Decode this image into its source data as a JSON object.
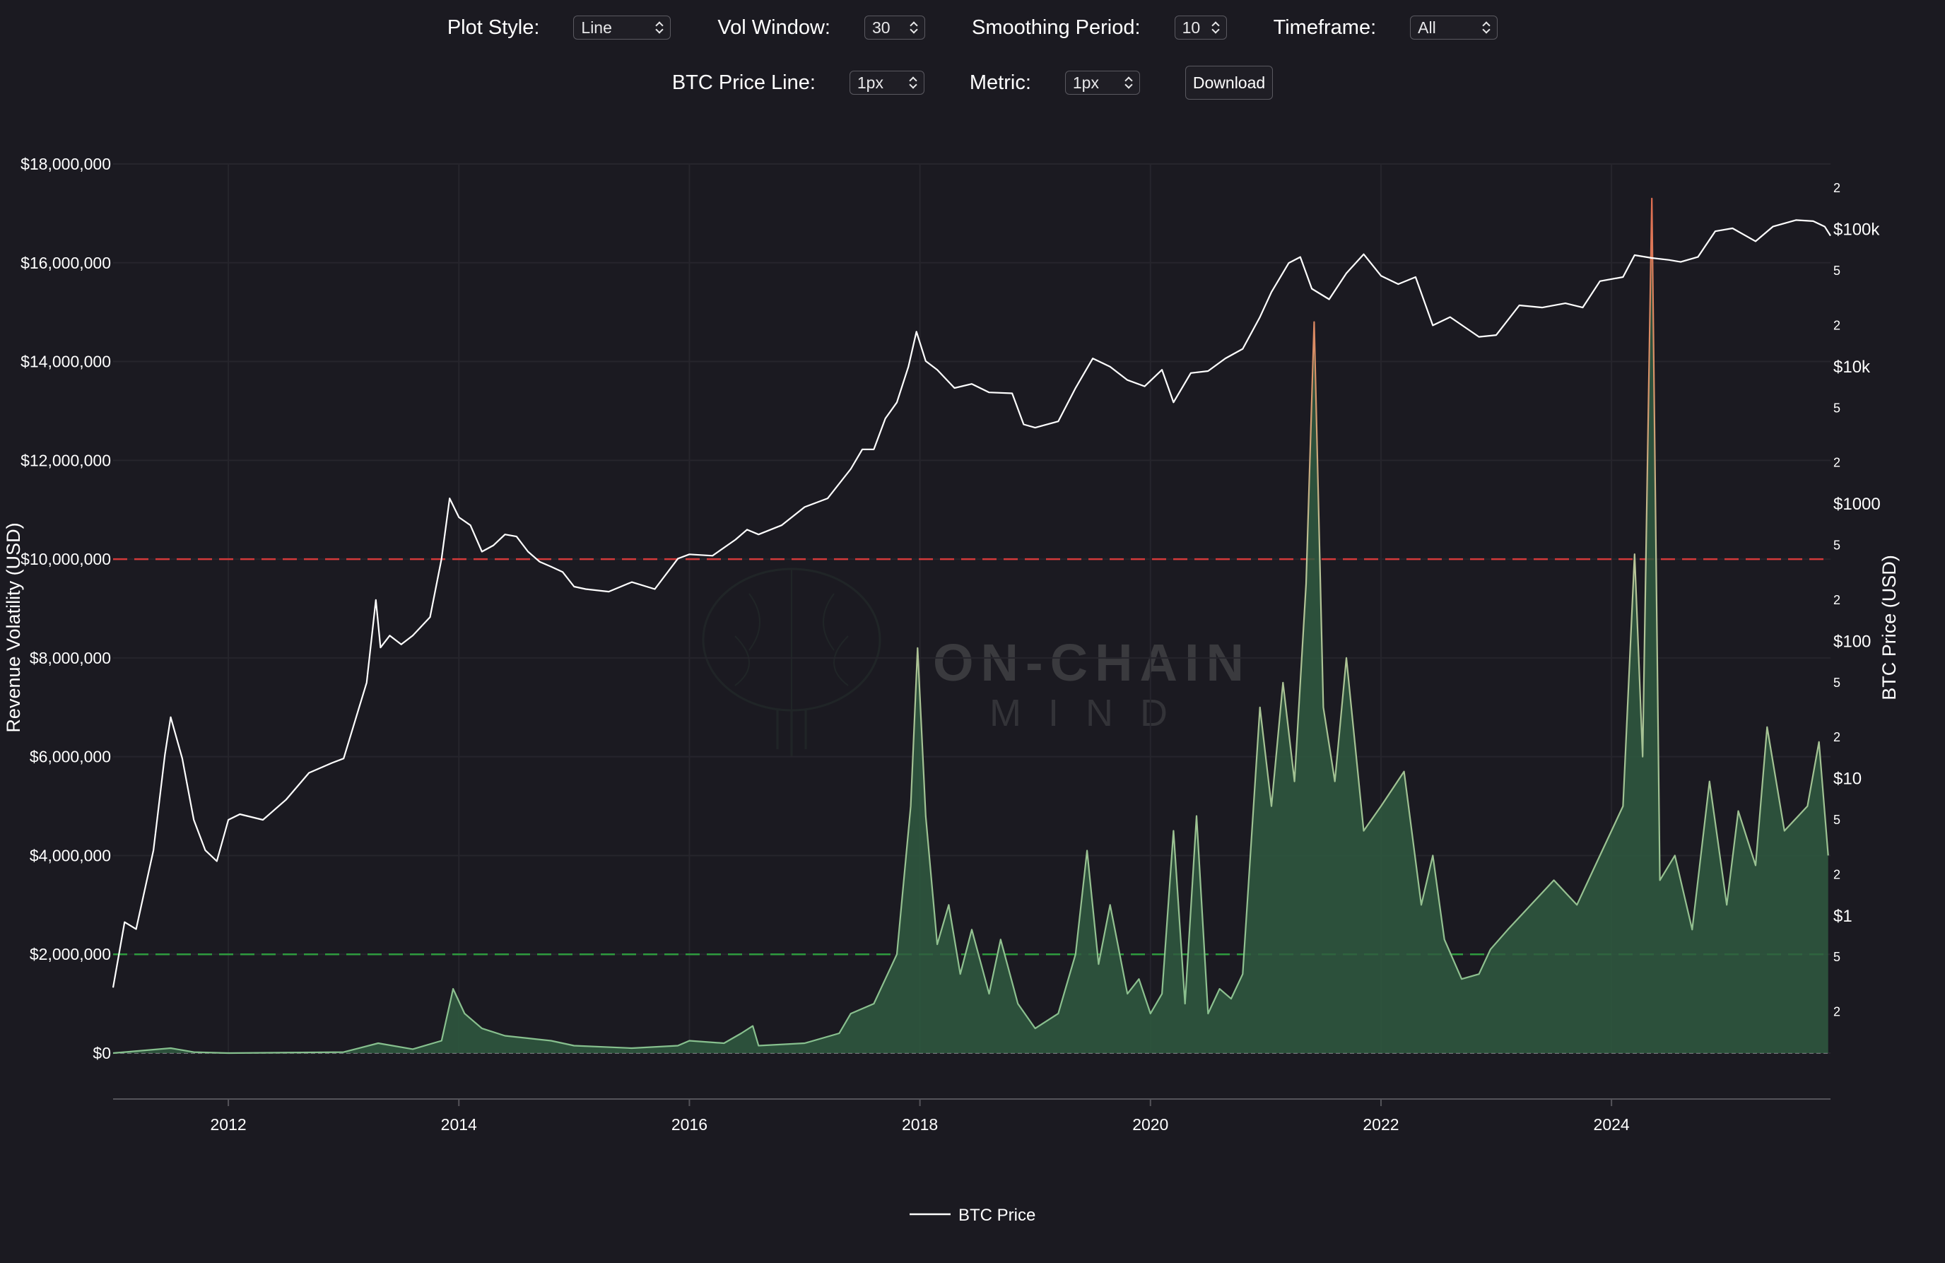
{
  "controls": {
    "plot_style": {
      "label": "Plot Style:",
      "value": "Line"
    },
    "vol_window": {
      "label": "Vol Window:",
      "value": "30"
    },
    "smoothing_period": {
      "label": "Smoothing Period:",
      "value": "10"
    },
    "timeframe": {
      "label": "Timeframe:",
      "value": "All"
    },
    "btc_price_line": {
      "label": "BTC Price Line:",
      "value": "1px"
    },
    "metric": {
      "label": "Metric:",
      "value": "1px"
    },
    "download_label": "Download"
  },
  "watermark": {
    "line1": "ON-CHAIN",
    "line2": "MIND"
  },
  "chart_data": {
    "type": "line",
    "background": "#1b1a21",
    "ylabel_left": "Revenue Volatility (USD)",
    "ylabel_right": "BTC Price (USD)",
    "left_axis": {
      "range": [
        0,
        18000000
      ],
      "ticks": [
        0,
        2000000,
        4000000,
        6000000,
        8000000,
        10000000,
        12000000,
        14000000,
        16000000,
        18000000
      ],
      "tick_labels": [
        "$0",
        "$2,000,000",
        "$4,000,000",
        "$6,000,000",
        "$8,000,000",
        "$10,000,000",
        "$12,000,000",
        "$14,000,000",
        "$16,000,000",
        "$18,000,000"
      ]
    },
    "right_axis": {
      "scale": "log",
      "range": [
        0.1,
        300000
      ],
      "major_ticks": [
        1,
        10,
        100,
        1000,
        10000,
        100000
      ],
      "major_labels": [
        "$1",
        "$10",
        "$100",
        "$1000",
        "$10k",
        "$100k"
      ],
      "minor_ticks": [
        0.2,
        0.5,
        2,
        5,
        20,
        50,
        200,
        500,
        2000,
        5000,
        20000,
        50000,
        200000
      ],
      "minor_labels": [
        "2",
        "5",
        "2",
        "5",
        "2",
        "5",
        "2",
        "5",
        "2",
        "5",
        "2",
        "5",
        "2"
      ]
    },
    "x_axis": {
      "range": [
        2011.0,
        2025.9
      ],
      "ticks": [
        2012,
        2014,
        2016,
        2018,
        2020,
        2022,
        2024
      ],
      "tick_labels": [
        "2012",
        "2014",
        "2016",
        "2018",
        "2020",
        "2022",
        "2024"
      ]
    },
    "threshold_lines": [
      {
        "value": 10000000,
        "color": "#d33a3a",
        "style": "dashed"
      },
      {
        "value": 2000000,
        "color": "#2e9a3e",
        "style": "dashed"
      }
    ],
    "legend": {
      "position": "bottom-center",
      "entries": [
        {
          "name": "BTC Price",
          "color": "#ffffff"
        }
      ]
    },
    "series": [
      {
        "name": "BTC Price",
        "axis": "right",
        "color": "#ffffff",
        "points": [
          [
            2011.0,
            0.3
          ],
          [
            2011.1,
            0.9
          ],
          [
            2011.2,
            0.8
          ],
          [
            2011.35,
            3
          ],
          [
            2011.45,
            15
          ],
          [
            2011.5,
            28
          ],
          [
            2011.6,
            14
          ],
          [
            2011.7,
            5
          ],
          [
            2011.8,
            3
          ],
          [
            2011.9,
            2.5
          ],
          [
            2012.0,
            5
          ],
          [
            2012.1,
            5.5
          ],
          [
            2012.3,
            5
          ],
          [
            2012.5,
            7
          ],
          [
            2012.7,
            11
          ],
          [
            2012.9,
            13
          ],
          [
            2013.0,
            14
          ],
          [
            2013.2,
            50
          ],
          [
            2013.28,
            200
          ],
          [
            2013.32,
            90
          ],
          [
            2013.4,
            110
          ],
          [
            2013.5,
            95
          ],
          [
            2013.6,
            110
          ],
          [
            2013.75,
            150
          ],
          [
            2013.85,
            400
          ],
          [
            2013.92,
            1100
          ],
          [
            2014.0,
            800
          ],
          [
            2014.1,
            700
          ],
          [
            2014.2,
            450
          ],
          [
            2014.3,
            500
          ],
          [
            2014.4,
            600
          ],
          [
            2014.5,
            580
          ],
          [
            2014.6,
            450
          ],
          [
            2014.7,
            380
          ],
          [
            2014.8,
            350
          ],
          [
            2014.9,
            320
          ],
          [
            2015.0,
            250
          ],
          [
            2015.1,
            240
          ],
          [
            2015.3,
            230
          ],
          [
            2015.5,
            270
          ],
          [
            2015.7,
            240
          ],
          [
            2015.9,
            400
          ],
          [
            2016.0,
            430
          ],
          [
            2016.2,
            420
          ],
          [
            2016.4,
            550
          ],
          [
            2016.5,
            650
          ],
          [
            2016.6,
            600
          ],
          [
            2016.8,
            700
          ],
          [
            2017.0,
            950
          ],
          [
            2017.2,
            1100
          ],
          [
            2017.4,
            1800
          ],
          [
            2017.5,
            2500
          ],
          [
            2017.6,
            2500
          ],
          [
            2017.7,
            4200
          ],
          [
            2017.8,
            5500
          ],
          [
            2017.9,
            10000
          ],
          [
            2017.97,
            18000
          ],
          [
            2018.05,
            11000
          ],
          [
            2018.15,
            9500
          ],
          [
            2018.3,
            7000
          ],
          [
            2018.45,
            7500
          ],
          [
            2018.6,
            6500
          ],
          [
            2018.8,
            6400
          ],
          [
            2018.9,
            3800
          ],
          [
            2019.0,
            3600
          ],
          [
            2019.2,
            4000
          ],
          [
            2019.35,
            7000
          ],
          [
            2019.5,
            11500
          ],
          [
            2019.65,
            10000
          ],
          [
            2019.8,
            8000
          ],
          [
            2019.95,
            7200
          ],
          [
            2020.1,
            9500
          ],
          [
            2020.2,
            5500
          ],
          [
            2020.35,
            9000
          ],
          [
            2020.5,
            9300
          ],
          [
            2020.65,
            11500
          ],
          [
            2020.8,
            13500
          ],
          [
            2020.95,
            23000
          ],
          [
            2021.05,
            35000
          ],
          [
            2021.2,
            57000
          ],
          [
            2021.3,
            63000
          ],
          [
            2021.4,
            37000
          ],
          [
            2021.55,
            31000
          ],
          [
            2021.7,
            48000
          ],
          [
            2021.85,
            66000
          ],
          [
            2022.0,
            46000
          ],
          [
            2022.15,
            40000
          ],
          [
            2022.3,
            45000
          ],
          [
            2022.45,
            20000
          ],
          [
            2022.6,
            23000
          ],
          [
            2022.85,
            16500
          ],
          [
            2023.0,
            17000
          ],
          [
            2023.2,
            28000
          ],
          [
            2023.4,
            27000
          ],
          [
            2023.6,
            29000
          ],
          [
            2023.75,
            27000
          ],
          [
            2023.9,
            42000
          ],
          [
            2024.1,
            45000
          ],
          [
            2024.2,
            65000
          ],
          [
            2024.35,
            62000
          ],
          [
            2024.5,
            60000
          ],
          [
            2024.6,
            58000
          ],
          [
            2024.75,
            63000
          ],
          [
            2024.9,
            97000
          ],
          [
            2025.05,
            102000
          ],
          [
            2025.25,
            82000
          ],
          [
            2025.4,
            105000
          ],
          [
            2025.6,
            117000
          ],
          [
            2025.75,
            115000
          ],
          [
            2025.85,
            105000
          ],
          [
            2025.9,
            90000
          ]
        ]
      },
      {
        "name": "Revenue Volatility",
        "axis": "left",
        "color": "#a8c8a4",
        "fill": "#2f5b40",
        "points": [
          [
            2011.0,
            0
          ],
          [
            2011.5,
            100000
          ],
          [
            2011.7,
            20000
          ],
          [
            2012.0,
            0
          ],
          [
            2013.0,
            20000
          ],
          [
            2013.3,
            200000
          ],
          [
            2013.6,
            80000
          ],
          [
            2013.85,
            250000
          ],
          [
            2013.95,
            1300000
          ],
          [
            2014.05,
            800000
          ],
          [
            2014.2,
            500000
          ],
          [
            2014.4,
            350000
          ],
          [
            2014.6,
            300000
          ],
          [
            2014.8,
            250000
          ],
          [
            2015.0,
            150000
          ],
          [
            2015.5,
            100000
          ],
          [
            2015.9,
            150000
          ],
          [
            2016.0,
            250000
          ],
          [
            2016.3,
            200000
          ],
          [
            2016.45,
            400000
          ],
          [
            2016.55,
            550000
          ],
          [
            2016.6,
            150000
          ],
          [
            2017.0,
            200000
          ],
          [
            2017.3,
            400000
          ],
          [
            2017.4,
            800000
          ],
          [
            2017.6,
            1000000
          ],
          [
            2017.8,
            2000000
          ],
          [
            2017.92,
            5000000
          ],
          [
            2017.98,
            8200000
          ],
          [
            2018.05,
            4800000
          ],
          [
            2018.15,
            2200000
          ],
          [
            2018.25,
            3000000
          ],
          [
            2018.35,
            1600000
          ],
          [
            2018.45,
            2500000
          ],
          [
            2018.6,
            1200000
          ],
          [
            2018.7,
            2300000
          ],
          [
            2018.85,
            1000000
          ],
          [
            2019.0,
            500000
          ],
          [
            2019.2,
            800000
          ],
          [
            2019.35,
            2000000
          ],
          [
            2019.45,
            4100000
          ],
          [
            2019.55,
            1800000
          ],
          [
            2019.65,
            3000000
          ],
          [
            2019.8,
            1200000
          ],
          [
            2019.9,
            1500000
          ],
          [
            2020.0,
            800000
          ],
          [
            2020.1,
            1200000
          ],
          [
            2020.2,
            4500000
          ],
          [
            2020.3,
            1000000
          ],
          [
            2020.4,
            4800000
          ],
          [
            2020.5,
            800000
          ],
          [
            2020.6,
            1300000
          ],
          [
            2020.7,
            1100000
          ],
          [
            2020.8,
            1600000
          ],
          [
            2020.95,
            7000000
          ],
          [
            2021.05,
            5000000
          ],
          [
            2021.15,
            7500000
          ],
          [
            2021.25,
            5500000
          ],
          [
            2021.35,
            9500000
          ],
          [
            2021.42,
            14800000
          ],
          [
            2021.5,
            7000000
          ],
          [
            2021.6,
            5500000
          ],
          [
            2021.7,
            8000000
          ],
          [
            2021.85,
            4500000
          ],
          [
            2022.0,
            5000000
          ],
          [
            2022.2,
            5700000
          ],
          [
            2022.35,
            3000000
          ],
          [
            2022.45,
            4000000
          ],
          [
            2022.55,
            2300000
          ],
          [
            2022.7,
            1500000
          ],
          [
            2022.85,
            1600000
          ],
          [
            2022.95,
            2100000
          ],
          [
            2023.1,
            2500000
          ],
          [
            2023.3,
            3000000
          ],
          [
            2023.5,
            3500000
          ],
          [
            2023.7,
            3000000
          ],
          [
            2023.9,
            4000000
          ],
          [
            2024.1,
            5000000
          ],
          [
            2024.2,
            10100000
          ],
          [
            2024.27,
            6000000
          ],
          [
            2024.35,
            17300000
          ],
          [
            2024.42,
            3500000
          ],
          [
            2024.55,
            4000000
          ],
          [
            2024.7,
            2500000
          ],
          [
            2024.85,
            5500000
          ],
          [
            2025.0,
            3000000
          ],
          [
            2025.1,
            4900000
          ],
          [
            2025.25,
            3800000
          ],
          [
            2025.35,
            6600000
          ],
          [
            2025.5,
            4500000
          ],
          [
            2025.7,
            5000000
          ],
          [
            2025.8,
            6300000
          ],
          [
            2025.88,
            4000000
          ]
        ]
      }
    ]
  }
}
